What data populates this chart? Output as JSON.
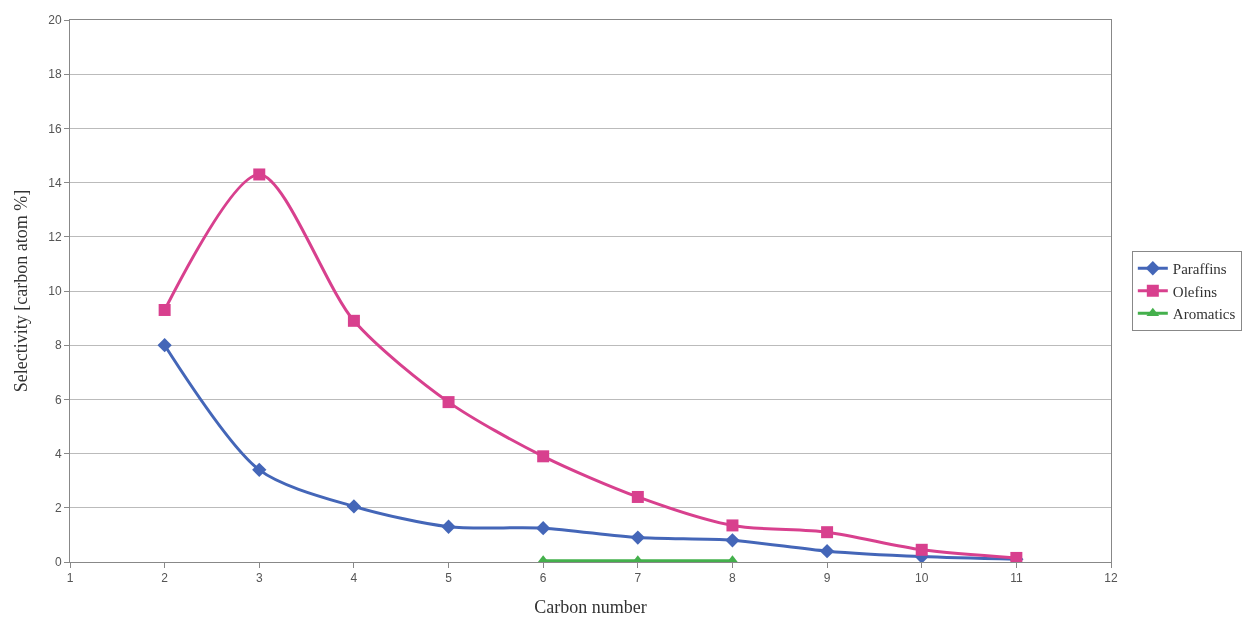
{
  "chart_data": {
    "type": "line",
    "xlabel": "Carbon number",
    "ylabel": "Selectivity [carbon atom %]",
    "xlim": [
      1,
      12
    ],
    "xticks": [
      1,
      2,
      3,
      4,
      5,
      6,
      7,
      8,
      9,
      10,
      11,
      12
    ],
    "ylim": [
      0,
      20
    ],
    "yticks": [
      0,
      2,
      4,
      6,
      8,
      10,
      12,
      14,
      16,
      18,
      20
    ],
    "grid": "y",
    "legend": "right",
    "line_style": "solid",
    "series": [
      {
        "name": "Paraffins",
        "color": "#4466b8",
        "marker": "diamond",
        "x": [
          2,
          3,
          4,
          5,
          6,
          7,
          8,
          9,
          10,
          11
        ],
        "values": [
          8.0,
          3.4,
          2.05,
          1.3,
          1.25,
          0.9,
          0.8,
          0.4,
          0.2,
          0.1
        ]
      },
      {
        "name": "Olefins",
        "color": "#d8408e",
        "marker": "square",
        "x": [
          2,
          3,
          4,
          5,
          6,
          7,
          8,
          9,
          10,
          11
        ],
        "values": [
          9.3,
          14.3,
          8.9,
          5.9,
          3.9,
          2.4,
          1.35,
          1.1,
          0.45,
          0.15
        ]
      },
      {
        "name": "Aromatics",
        "color": "#44b04c",
        "marker": "triangle",
        "x": [
          6,
          7,
          8
        ],
        "values": [
          0.05,
          0.05,
          0.05
        ]
      }
    ]
  }
}
